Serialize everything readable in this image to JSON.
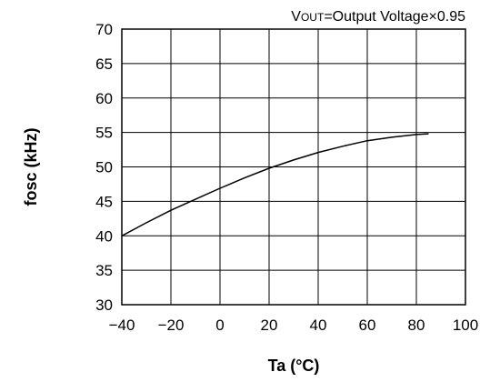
{
  "chart_data": {
    "type": "line",
    "annotation": {
      "prefix": "V",
      "subscript": "OUT",
      "text": "=Output Voltage×0.95"
    },
    "xlabel": "Ta (°C)",
    "ylabel": "fosc (kHz)",
    "xlim": [
      -40,
      100
    ],
    "ylim": [
      30,
      70
    ],
    "xticks": [
      -40,
      -20,
      0,
      20,
      40,
      60,
      80,
      100
    ],
    "xtick_labels": [
      "−40",
      "−20",
      "0",
      "20",
      "40",
      "60",
      "80",
      "100"
    ],
    "yticks": [
      30,
      35,
      40,
      45,
      50,
      55,
      60,
      65,
      70
    ],
    "ytick_labels": [
      "30",
      "35",
      "40",
      "45",
      "50",
      "55",
      "60",
      "65",
      "70"
    ],
    "grid": true,
    "series": [
      {
        "x": [
          -40,
          -30,
          -20,
          -10,
          0,
          10,
          20,
          30,
          40,
          50,
          60,
          70,
          80,
          85
        ],
        "y": [
          40.0,
          41.9,
          43.7,
          45.3,
          46.9,
          48.4,
          49.8,
          51.0,
          52.1,
          53.0,
          53.8,
          54.3,
          54.7,
          54.8
        ]
      }
    ],
    "colors": {
      "line": "#000000",
      "grid": "#000000"
    }
  }
}
